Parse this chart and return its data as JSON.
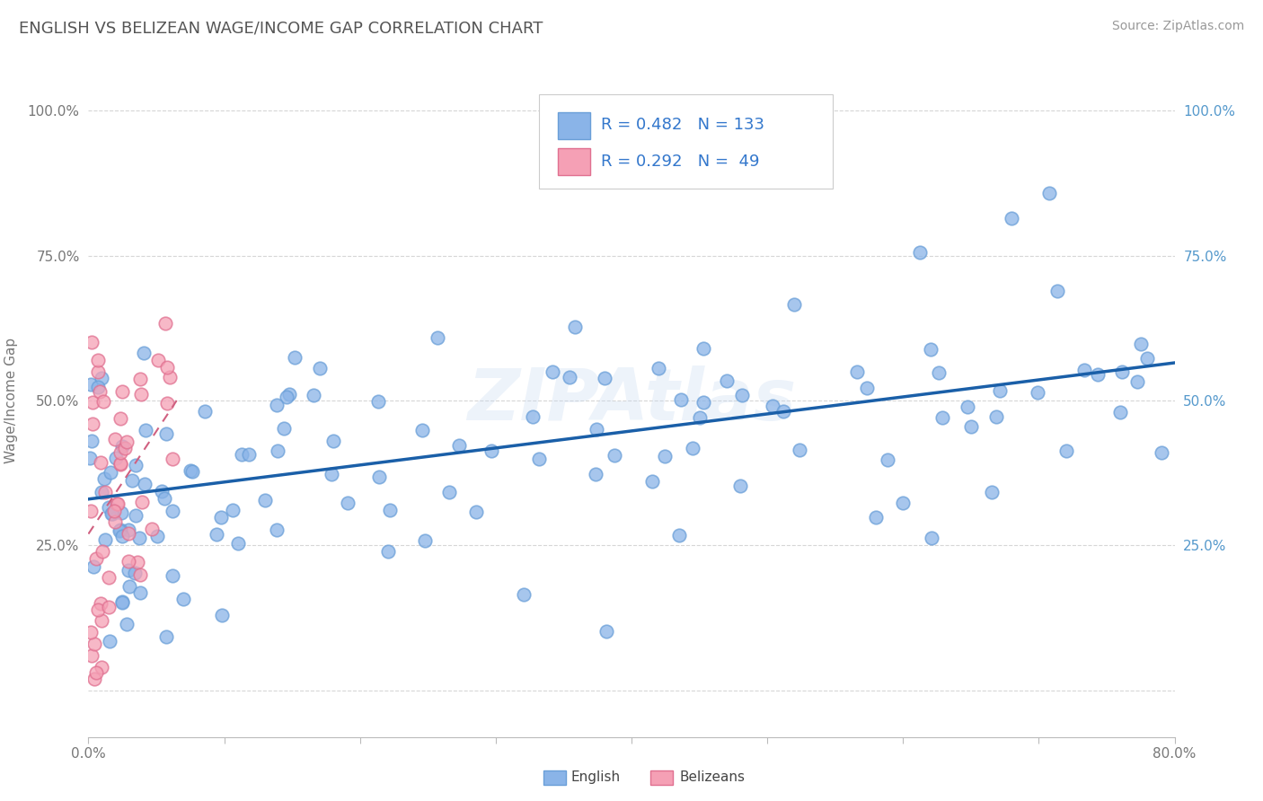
{
  "title": "ENGLISH VS BELIZEAN WAGE/INCOME GAP CORRELATION CHART",
  "source_text": "Source: ZipAtlas.com",
  "ylabel": "Wage/Income Gap",
  "yticks": [
    0.0,
    0.25,
    0.5,
    0.75,
    1.0
  ],
  "ytick_labels": [
    "",
    "25.0%",
    "50.0%",
    "75.0%",
    "100.0%"
  ],
  "xmin": 0.0,
  "xmax": 0.8,
  "ymin": -0.08,
  "ymax": 1.08,
  "english_color": "#8ab4e8",
  "english_edge_color": "#6a9fd8",
  "belizean_color": "#f5a0b5",
  "belizean_edge_color": "#e07090",
  "english_trend_color": "#1a5fa8",
  "belizean_trend_color": "#d06080",
  "english_R": 0.482,
  "english_N": 133,
  "belizean_R": 0.292,
  "belizean_N": 49,
  "watermark": "ZIPAtlas",
  "background_color": "#ffffff",
  "grid_color": "#cccccc",
  "eng_trend_x0": 0.0,
  "eng_trend_x1": 0.8,
  "eng_trend_y0": 0.33,
  "eng_trend_y1": 0.565,
  "bel_trend_x0": 0.0,
  "bel_trend_x1": 0.065,
  "bel_trend_y0": 0.27,
  "bel_trend_y1": 0.5
}
